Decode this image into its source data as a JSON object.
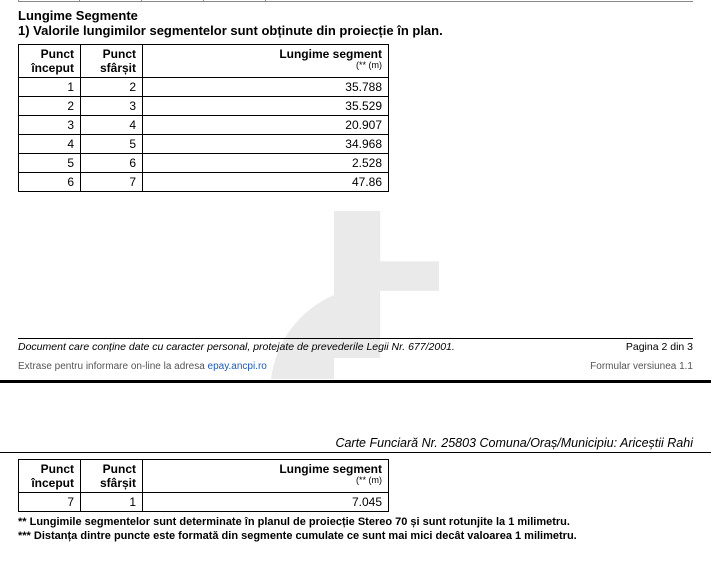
{
  "section": {
    "title": "Lungime Segmente",
    "subtitle": "1) Valorile lungimilor segmentelor sunt obținute din proiecție în plan."
  },
  "table_headers": {
    "start": "Punct început",
    "end": "Punct sfârșit",
    "length": "Lungime segment",
    "length_unit": "(** (m)"
  },
  "segments_page1": [
    {
      "start": "1",
      "end": "2",
      "length": "35.788"
    },
    {
      "start": "2",
      "end": "3",
      "length": "35.529"
    },
    {
      "start": "3",
      "end": "4",
      "length": "20.907"
    },
    {
      "start": "4",
      "end": "5",
      "length": "34.968"
    },
    {
      "start": "5",
      "end": "6",
      "length": "2.528"
    },
    {
      "start": "6",
      "end": "7",
      "length": "47.86"
    }
  ],
  "segments_page2": [
    {
      "start": "7",
      "end": "1",
      "length": "7.045"
    }
  ],
  "footer": {
    "disclaimer": "Document care conține date cu caracter personal, protejate de prevederile Legii Nr. 677/2001.",
    "page_info": "Pagina 2 din 3",
    "extras_prefix": "Extrase pentru informare on-line la adresa ",
    "extras_link_text": "epay.ancpi.ro",
    "version": "Formular versiunea 1.1"
  },
  "header2": {
    "text": "Carte Funciară Nr. 25803 Comuna/Oraș/Municipiu: Ariceștii Rahi"
  },
  "notes": {
    "line1": "** Lungimile segmentelor sunt determinate în planul de proiecție Stereo 70 și sunt rotunjite la 1 milimetru.",
    "line2": "*** Distanța dintre puncte este formată din segmente cumulate ce sunt mai mici decât valoarea 1 milimetru."
  },
  "colors": {
    "link": "#1a5bbf",
    "text": "#000000",
    "muted": "#555555"
  }
}
